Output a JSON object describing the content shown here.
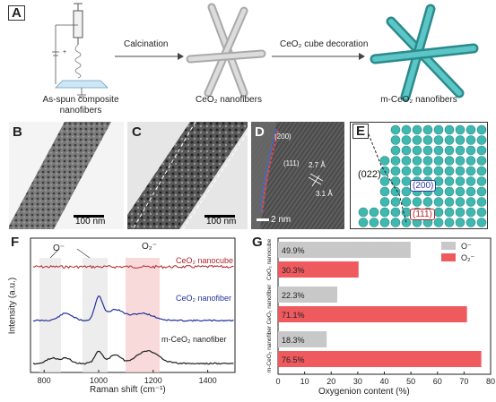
{
  "panels": {
    "A": "A",
    "B": "B",
    "C": "C",
    "D": "D",
    "E": "E",
    "F": "F",
    "G": "G"
  },
  "panel_a": {
    "step1": "Calcination",
    "step2": "CeO₂ cube decoration",
    "caption1_line1": "As-spun composite",
    "caption1_line2": "nanofibers",
    "caption2": "CeO₂ nanofibers",
    "caption3": "m-CeO₂ nanofibers"
  },
  "panel_b": {
    "scale": "100 nm"
  },
  "panel_c": {
    "scale": "100 nm"
  },
  "panel_d": {
    "label_200": "(200)",
    "label_111": "(111)",
    "d1": "2.7 Å",
    "d2": "3.1 Å",
    "scale": "2 nm"
  },
  "panel_e": {
    "facet_022": "(022)",
    "facet_200": "(200)",
    "facet_111": "(111)"
  },
  "panel_f": {
    "xlabel": "Raman shift (cm⁻¹)",
    "ylabel": "Intensity (a.u.)",
    "ticks": [
      "800",
      "1000",
      "1200",
      "1400"
    ],
    "o_minus": "O⁻",
    "o2_minus": "O₂⁻",
    "curve1": "CeO₂ nanocube",
    "curve2": "CeO₂ nanofiber",
    "curve3": "m-CeO₂ nanofiber",
    "colors": {
      "curve1": "#b3242a",
      "curve2": "#23339a",
      "curve3": "#1e1e1e"
    }
  },
  "chart_data": {
    "type": "bar",
    "orientation": "horizontal",
    "categories": [
      "CeO₂ nanocube",
      "CeO₂ nanofiber",
      "m-CeO₂ nanofiber"
    ],
    "series": [
      {
        "name": "O⁻",
        "values": [
          49.9,
          22.3,
          18.3
        ],
        "labels": [
          "49.9%",
          "22.3%",
          "18.3%"
        ],
        "color": "#c8c8c8"
      },
      {
        "name": "O₂⁻",
        "values": [
          30.3,
          71.1,
          76.5
        ],
        "labels": [
          "30.3%",
          "71.1%",
          "76.5%"
        ],
        "color": "#ef5a5f"
      }
    ],
    "xlabel": "Oxygenion content (%)",
    "xlim": [
      0,
      80
    ],
    "xticks": [
      "0",
      "10",
      "20",
      "30",
      "40",
      "50",
      "60",
      "70",
      "80"
    ],
    "legend_position": "top-right",
    "grid": false
  }
}
